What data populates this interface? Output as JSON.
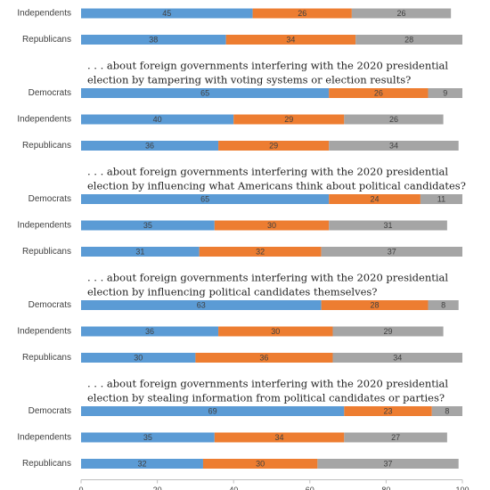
{
  "chart_data": {
    "type": "stacked_bar",
    "colors": [
      "#5b9bd5",
      "#ed7d31",
      "#a5a5a5"
    ],
    "xlim": [
      0,
      100
    ],
    "xticks": [
      0,
      20,
      40,
      60,
      80,
      100
    ],
    "groups": [
      {
        "rows": [
          {
            "category": "Independents",
            "values": [
              45,
              26,
              26
            ]
          },
          {
            "category": "Republicans",
            "values": [
              38,
              34,
              28
            ]
          }
        ]
      },
      {
        "title": [
          ". . . about foreign governments interfering with the 2020 presidential",
          "election by tampering with voting systems or election results?"
        ],
        "rows": [
          {
            "category": "Democrats",
            "values": [
              65,
              26,
              9
            ]
          },
          {
            "category": "Independents",
            "values": [
              40,
              29,
              26
            ]
          },
          {
            "category": "Republicans",
            "values": [
              36,
              29,
              34
            ]
          }
        ]
      },
      {
        "title": [
          ". . . about foreign governments interfering with the 2020 presidential",
          "election by influencing what Americans think about political candidates?"
        ],
        "rows": [
          {
            "category": "Democrats",
            "values": [
              65,
              24,
              11
            ]
          },
          {
            "category": "Independents",
            "values": [
              35,
              30,
              31
            ]
          },
          {
            "category": "Republicans",
            "values": [
              31,
              32,
              37
            ]
          }
        ]
      },
      {
        "title": [
          ". . . about foreign governments interfering with the 2020 presidential",
          "election by influencing political candidates themselves?"
        ],
        "rows": [
          {
            "category": "Democrats",
            "values": [
              63,
              28,
              8
            ]
          },
          {
            "category": "Independents",
            "values": [
              36,
              30,
              29
            ]
          },
          {
            "category": "Republicans",
            "values": [
              30,
              36,
              34
            ]
          }
        ]
      },
      {
        "title": [
          ". . . about foreign governments interfering with the 2020 presidential",
          "election by stealing information from political candidates or parties?"
        ],
        "rows": [
          {
            "category": "Democrats",
            "values": [
              69,
              23,
              8
            ]
          },
          {
            "category": "Independents",
            "values": [
              35,
              34,
              27
            ]
          },
          {
            "category": "Republicans",
            "values": [
              32,
              30,
              37
            ]
          }
        ]
      }
    ]
  }
}
